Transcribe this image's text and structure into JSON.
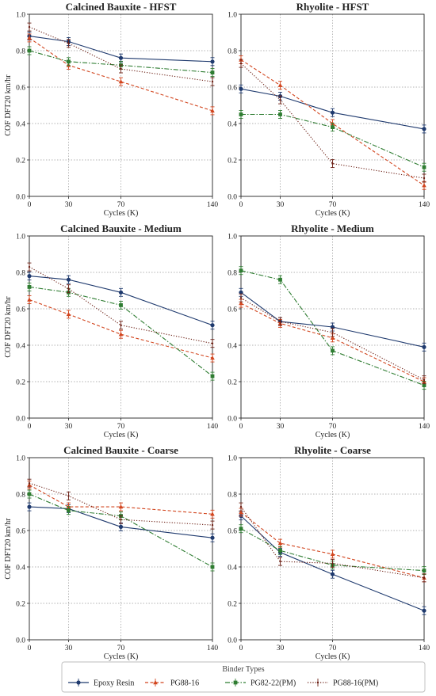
{
  "legend": {
    "title": "Binder Types",
    "items": [
      {
        "name": "Epoxy Resin",
        "color": "#1f3a6e",
        "dash": "solid",
        "marker": "circle"
      },
      {
        "name": "PG88-16",
        "color": "#d2451e",
        "dash": "dashed",
        "marker": "triangle"
      },
      {
        "name": "PG82-22(PM)",
        "color": "#2f7d32",
        "dash": "dashdot",
        "marker": "square"
      },
      {
        "name": "PG88-16(PM)",
        "color": "#6b1f14",
        "dash": "dotted",
        "marker": "none"
      }
    ]
  },
  "chart_data": [
    {
      "type": "line",
      "title": "Calcined Bauxite - HFST",
      "xlabel": "Cycles (K)",
      "ylabel": "COF DFT20 km/hr",
      "x": [
        0,
        30,
        70,
        140
      ],
      "xticks": [
        "0",
        "30",
        "70",
        "140"
      ],
      "ylim": [
        0,
        1.0
      ],
      "yticks": [
        "0.0",
        "0.2",
        "0.4",
        "0.6",
        "0.8",
        "1.0"
      ],
      "grid": true,
      "series": [
        {
          "name": "Epoxy Resin",
          "values": [
            0.88,
            0.85,
            0.76,
            0.74
          ]
        },
        {
          "name": "PG88-16",
          "values": [
            0.87,
            0.72,
            0.63,
            0.47
          ]
        },
        {
          "name": "PG82-22(PM)",
          "values": [
            0.8,
            0.74,
            0.72,
            0.68
          ]
        },
        {
          "name": "PG88-16(PM)",
          "values": [
            0.93,
            0.84,
            0.7,
            0.63
          ]
        }
      ]
    },
    {
      "type": "line",
      "title": "Rhyolite - HFST",
      "xlabel": "Cycles (K)",
      "ylabel": "",
      "x": [
        0,
        30,
        70,
        140
      ],
      "xticks": [
        "0",
        "30",
        "70",
        "140"
      ],
      "ylim": [
        0,
        1.0
      ],
      "yticks": [
        "0.0",
        "0.2",
        "0.4",
        "0.6",
        "0.8",
        "1.0"
      ],
      "grid": true,
      "series": [
        {
          "name": "Epoxy Resin",
          "values": [
            0.59,
            0.55,
            0.46,
            0.37
          ]
        },
        {
          "name": "PG88-16",
          "values": [
            0.75,
            0.61,
            0.4,
            0.06
          ]
        },
        {
          "name": "PG82-22(PM)",
          "values": [
            0.45,
            0.45,
            0.38,
            0.16
          ]
        },
        {
          "name": "PG88-16(PM)",
          "values": [
            0.73,
            0.53,
            0.18,
            0.1
          ]
        }
      ]
    },
    {
      "type": "line",
      "title": "Calcined Bauxite - Medium",
      "xlabel": "Cycles (K)",
      "ylabel": "COF DFT20 km/hr",
      "x": [
        0,
        30,
        70,
        140
      ],
      "xticks": [
        "0",
        "30",
        "70",
        "140"
      ],
      "ylim": [
        0,
        1.0
      ],
      "yticks": [
        "0.0",
        "0.2",
        "0.4",
        "0.6",
        "0.8",
        "1.0"
      ],
      "grid": true,
      "series": [
        {
          "name": "Epoxy Resin",
          "values": [
            0.78,
            0.76,
            0.69,
            0.51
          ]
        },
        {
          "name": "PG88-16",
          "values": [
            0.65,
            0.57,
            0.46,
            0.33
          ]
        },
        {
          "name": "PG82-22(PM)",
          "values": [
            0.72,
            0.69,
            0.62,
            0.23
          ]
        },
        {
          "name": "PG88-16(PM)",
          "values": [
            0.83,
            0.71,
            0.51,
            0.41
          ]
        }
      ]
    },
    {
      "type": "line",
      "title": "Rhyolite - Medium",
      "xlabel": "Cycles (K)",
      "ylabel": "",
      "x": [
        0,
        30,
        70,
        140
      ],
      "xticks": [
        "0",
        "30",
        "70",
        "140"
      ],
      "ylim": [
        0,
        1.0
      ],
      "yticks": [
        "0.0",
        "0.2",
        "0.4",
        "0.6",
        "0.8",
        "1.0"
      ],
      "grid": true,
      "series": [
        {
          "name": "Epoxy Resin",
          "values": [
            0.69,
            0.53,
            0.5,
            0.39
          ]
        },
        {
          "name": "PG88-16",
          "values": [
            0.63,
            0.52,
            0.44,
            0.2
          ]
        },
        {
          "name": "PG82-22(PM)",
          "values": [
            0.81,
            0.76,
            0.37,
            0.18
          ]
        },
        {
          "name": "PG88-16(PM)",
          "values": [
            0.66,
            0.53,
            0.47,
            0.21
          ]
        }
      ]
    },
    {
      "type": "line",
      "title": "Calcined Bauxite - Coarse",
      "xlabel": "Cycles (K)",
      "ylabel": "COF DFT20 km/hr",
      "x": [
        0,
        30,
        70,
        140
      ],
      "xticks": [
        "0",
        "30",
        "70",
        "140"
      ],
      "ylim": [
        0,
        1.0
      ],
      "yticks": [
        "0.0",
        "0.2",
        "0.4",
        "0.6",
        "0.8",
        "1.0"
      ],
      "grid": true,
      "series": [
        {
          "name": "Epoxy Resin",
          "values": [
            0.73,
            0.72,
            0.62,
            0.56
          ]
        },
        {
          "name": "PG88-16",
          "values": [
            0.85,
            0.73,
            0.73,
            0.69
          ]
        },
        {
          "name": "PG82-22(PM)",
          "values": [
            0.8,
            0.71,
            0.68,
            0.4
          ]
        },
        {
          "name": "PG88-16(PM)",
          "values": [
            0.86,
            0.79,
            0.66,
            0.63
          ]
        }
      ]
    },
    {
      "type": "line",
      "title": "Rhyolite - Coarse",
      "xlabel": "Cycles (K)",
      "ylabel": "",
      "x": [
        0,
        30,
        70,
        140
      ],
      "xticks": [
        "0",
        "30",
        "70",
        "140"
      ],
      "ylim": [
        0,
        1.0
      ],
      "yticks": [
        "0.0",
        "0.2",
        "0.4",
        "0.6",
        "0.8",
        "1.0"
      ],
      "grid": true,
      "series": [
        {
          "name": "Epoxy Resin",
          "values": [
            0.68,
            0.48,
            0.36,
            0.16
          ]
        },
        {
          "name": "PG88-16",
          "values": [
            0.7,
            0.53,
            0.47,
            0.34
          ]
        },
        {
          "name": "PG82-22(PM)",
          "values": [
            0.61,
            0.49,
            0.41,
            0.38
          ]
        },
        {
          "name": "PG88-16(PM)",
          "values": [
            0.73,
            0.43,
            0.42,
            0.34
          ]
        }
      ]
    }
  ]
}
